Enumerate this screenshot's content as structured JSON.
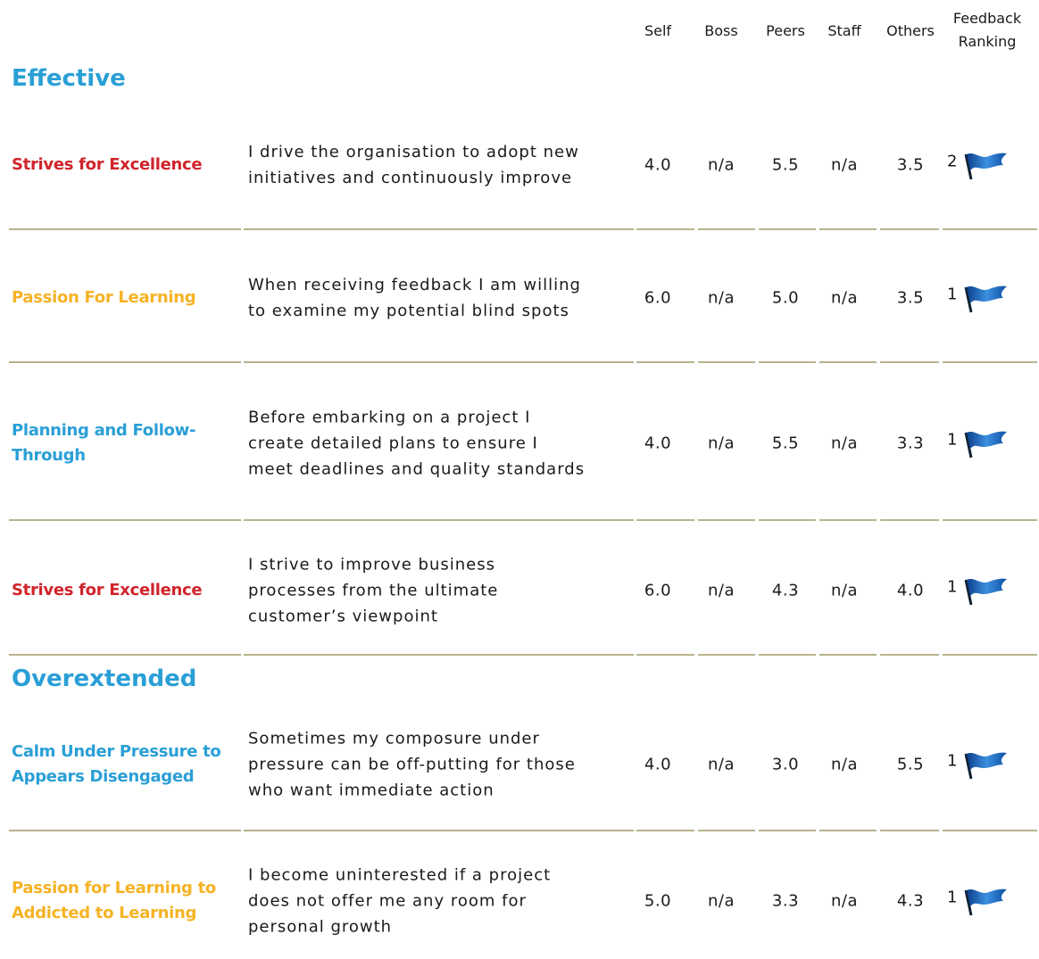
{
  "header": {
    "columns": [
      "Self",
      "Boss",
      "Peers",
      "Staff",
      "Others",
      "Feedback Ranking"
    ]
  },
  "sections": [
    {
      "title": "Effective",
      "rows": [
        {
          "label": "Strives for Excellence",
          "color": "#d0242b",
          "statement": "I drive the organisation to adopt new initiatives and continuously improve",
          "scores": [
            "4.0",
            "n/a",
            "5.5",
            "n/a",
            "3.5"
          ],
          "rank": 2
        },
        {
          "label": "Passion For Learning",
          "color": "#f5b324",
          "statement": "When receiving feedback I am willing to examine my potential blind spots",
          "scores": [
            "6.0",
            "n/a",
            "5.0",
            "n/a",
            "3.5"
          ],
          "rank": 1
        },
        {
          "label": "Planning and Follow-Through",
          "color": "#2a9fd6",
          "statement": "Before embarking on a project I create detailed plans to ensure I meet deadlines and quality standards",
          "scores": [
            "4.0",
            "n/a",
            "5.5",
            "n/a",
            "3.3"
          ],
          "rank": 1
        },
        {
          "label": "Strives for Excellence",
          "color": "#d0242b",
          "statement": "I strive to improve business processes from the ultimate customer’s viewpoint",
          "scores": [
            "6.0",
            "n/a",
            "4.3",
            "n/a",
            "4.0"
          ],
          "rank": 1
        }
      ]
    },
    {
      "title": "Overextended",
      "rows": [
        {
          "label": "Calm Under Pressure to Appears Disengaged",
          "color": "#2a9fd6",
          "statement": "Sometimes my composure under pressure can be off-putting for those who want immediate action",
          "scores": [
            "4.0",
            "n/a",
            "3.0",
            "n/a",
            "5.5"
          ],
          "rank": 1
        },
        {
          "label": "Passion for Learning to Addicted to Learning",
          "color": "#f5b324",
          "statement": "I become uninterested if a project does not offer me any room for personal growth",
          "scores": [
            "5.0",
            "n/a",
            "3.3",
            "n/a",
            "4.3"
          ],
          "rank": 1
        }
      ]
    }
  ]
}
